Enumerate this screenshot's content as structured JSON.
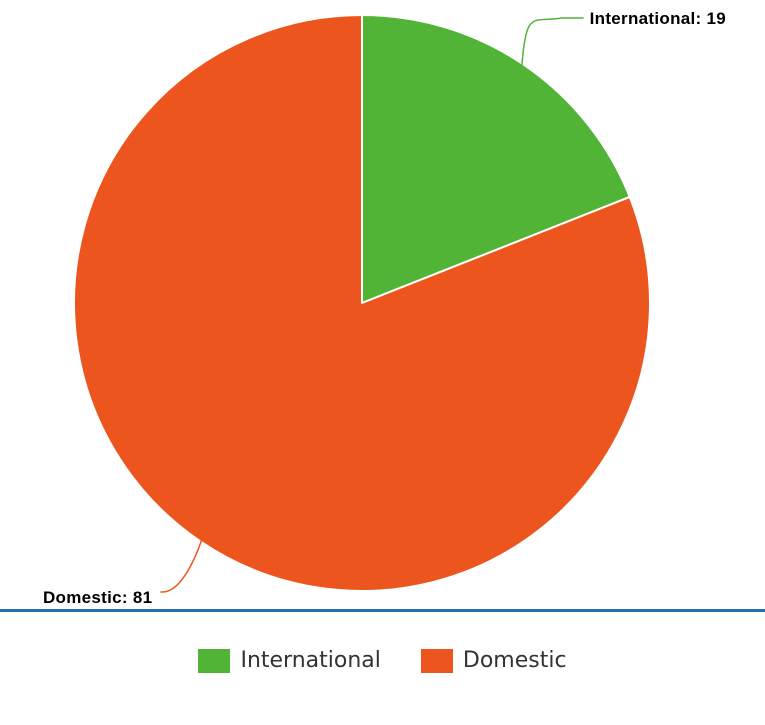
{
  "chart_data": {
    "type": "pie",
    "slices": [
      {
        "name": "International",
        "value": 19,
        "label": "International: 19",
        "color": "#52b436"
      },
      {
        "name": "Domestic",
        "value": 81,
        "label": "Domestic: 81",
        "color": "#ec561e"
      }
    ],
    "legend_position": "bottom",
    "start_angle": "top, clockwise"
  },
  "legend": {
    "items": [
      {
        "label": "International",
        "color": "#52b436"
      },
      {
        "label": "Domestic",
        "color": "#ec561e"
      }
    ]
  },
  "divider_color": "#1f6fb2"
}
